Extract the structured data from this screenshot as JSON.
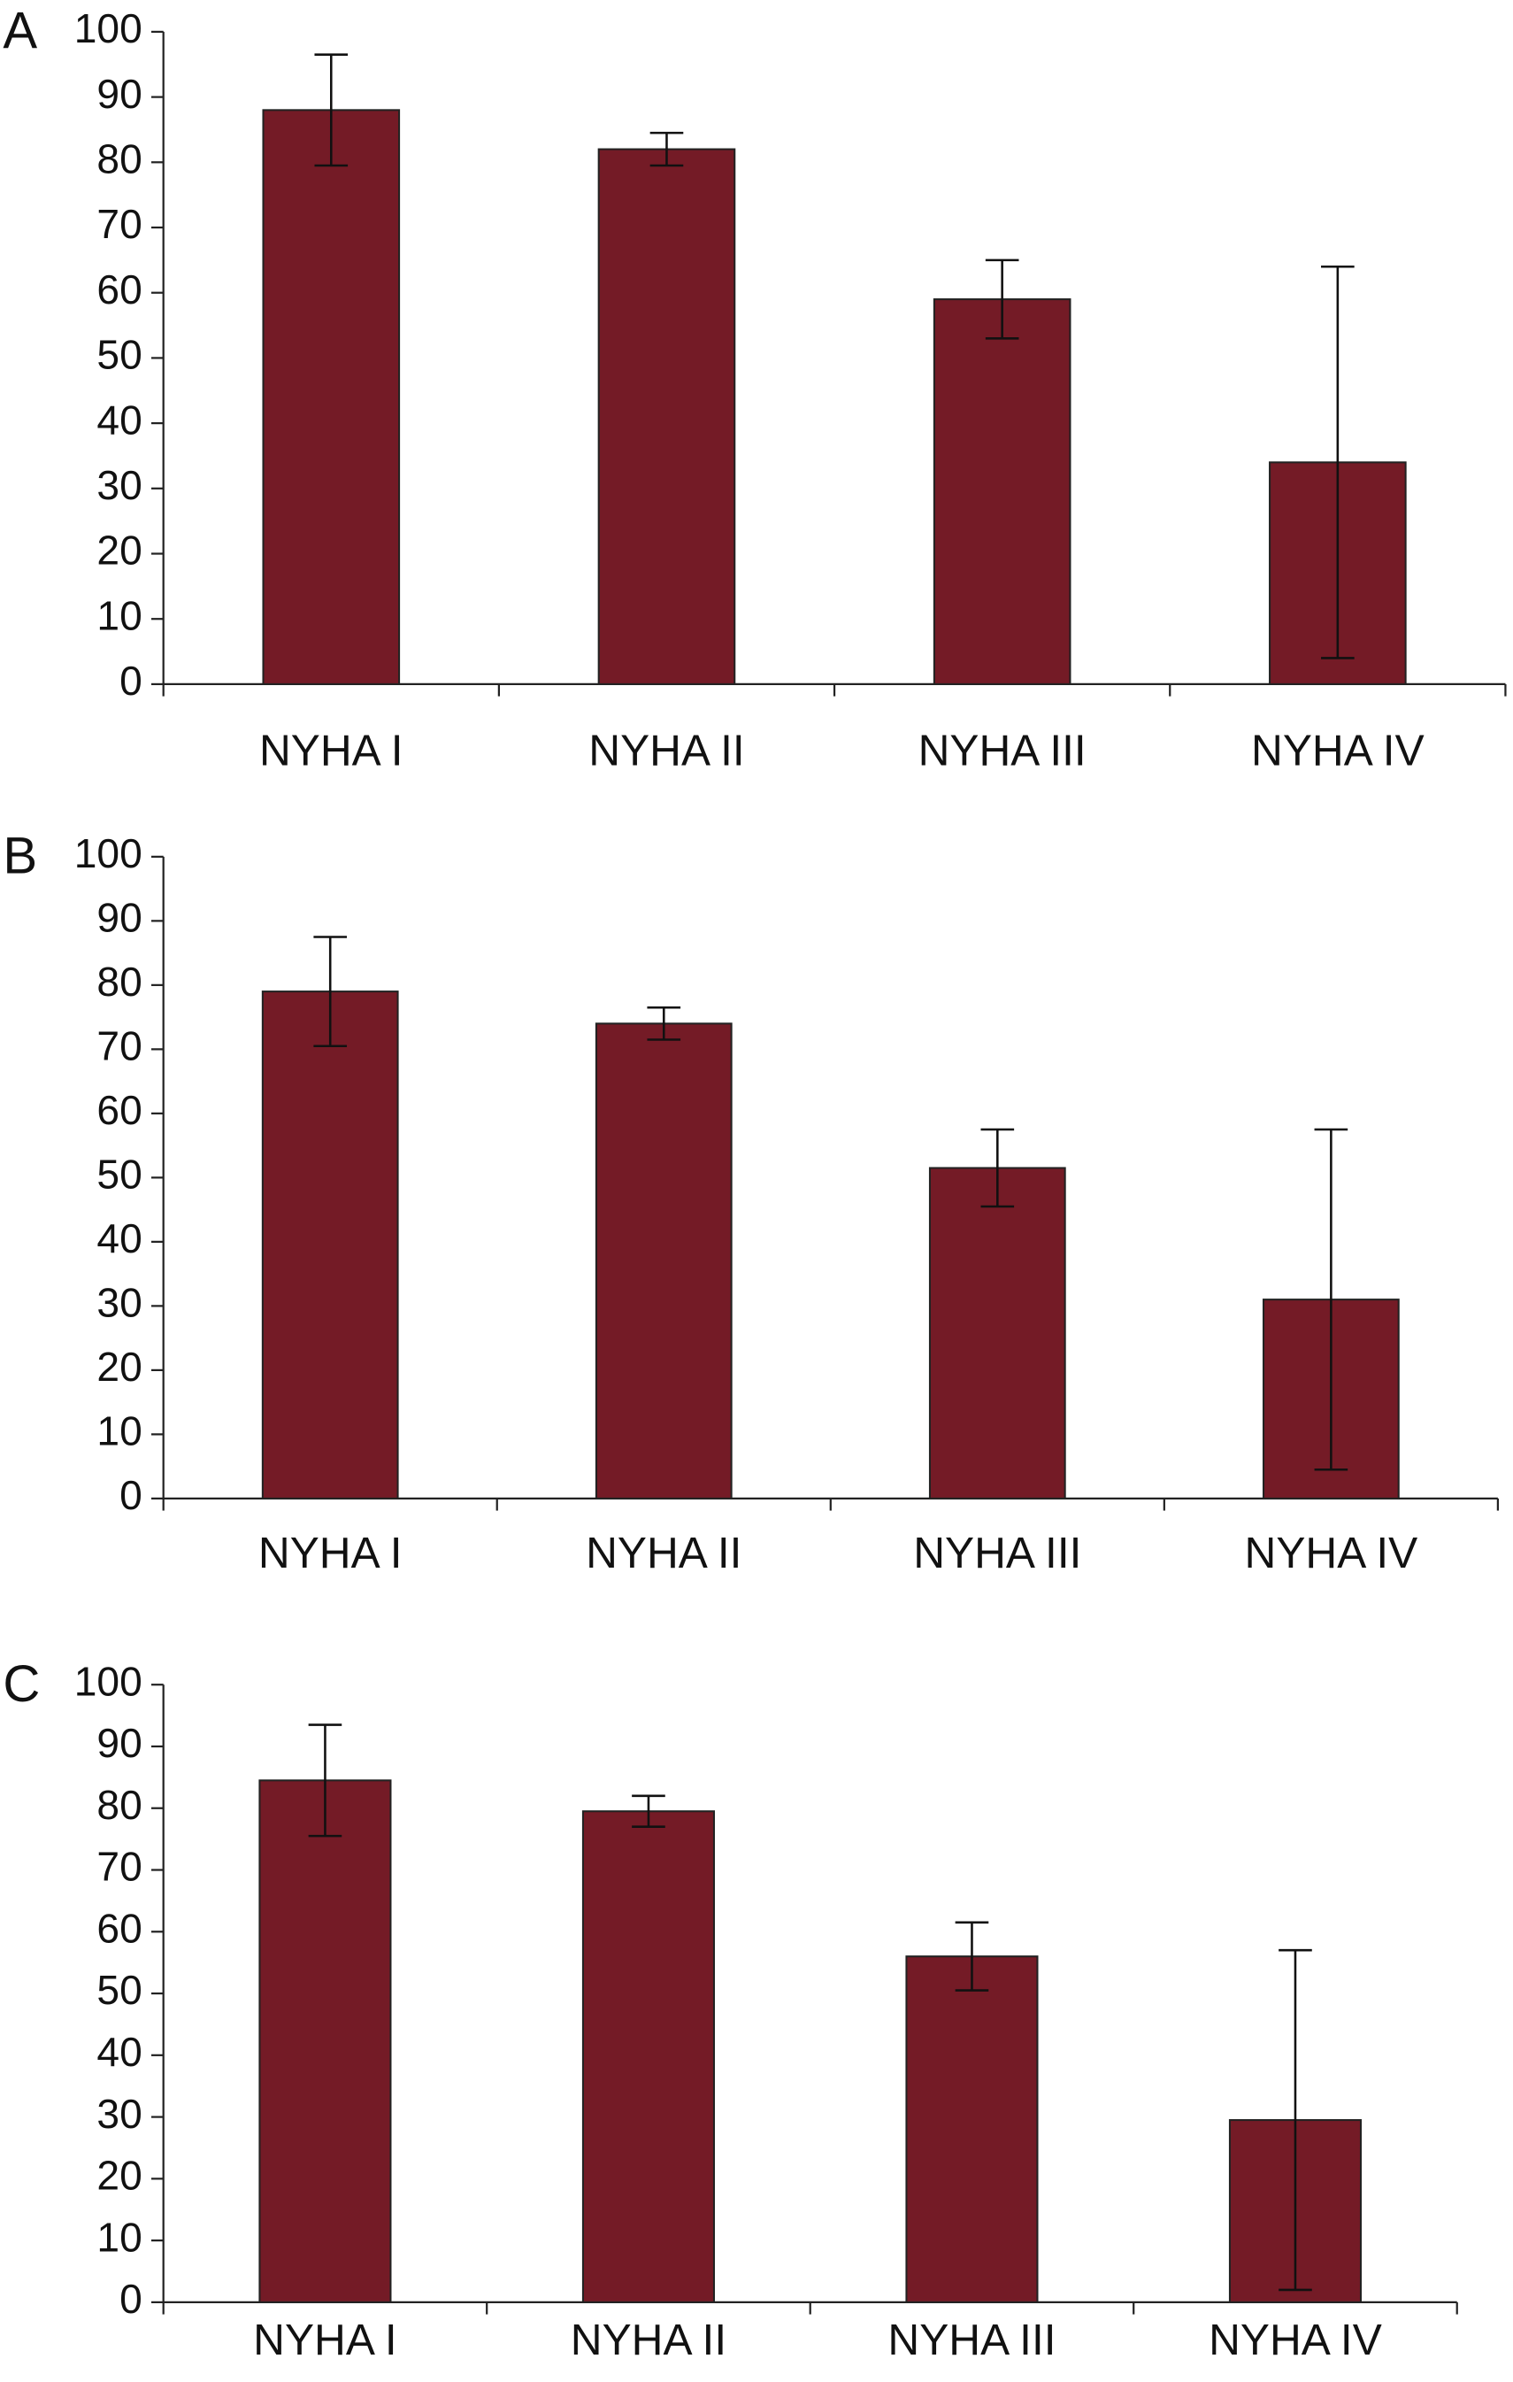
{
  "chart_data": [
    {
      "type": "bar",
      "title": "A",
      "categories": [
        "NYHA I",
        "NYHA II",
        "NYHA III",
        "NYHA IV"
      ],
      "values": [
        88,
        82,
        59,
        34
      ],
      "errors": [
        8.5,
        2.5,
        6,
        30
      ],
      "color": "#741b26",
      "ylim": [
        0,
        100
      ],
      "yticks": [
        0,
        10,
        20,
        30,
        40,
        50,
        60,
        70,
        80,
        90,
        100
      ]
    },
    {
      "type": "bar",
      "title": "B",
      "categories": [
        "NYHA I",
        "NYHA II",
        "NYHA III",
        "NYHA IV"
      ],
      "values": [
        79,
        74,
        51.5,
        31
      ],
      "errors": [
        8.5,
        2.5,
        6,
        26.5
      ],
      "color": "#741b26",
      "ylim": [
        0,
        100
      ],
      "yticks": [
        0,
        10,
        20,
        30,
        40,
        50,
        60,
        70,
        80,
        90,
        100
      ]
    },
    {
      "type": "bar",
      "title": "C",
      "categories": [
        "NYHA I",
        "NYHA II",
        "NYHA III",
        "NYHA IV"
      ],
      "values": [
        84.5,
        79.5,
        56,
        29.5
      ],
      "errors": [
        9,
        2.5,
        5.5,
        27.5
      ],
      "color": "#741b26",
      "ylim": [
        0,
        100
      ],
      "yticks": [
        0,
        10,
        20,
        30,
        40,
        50,
        60,
        70,
        80,
        90,
        100
      ]
    }
  ]
}
